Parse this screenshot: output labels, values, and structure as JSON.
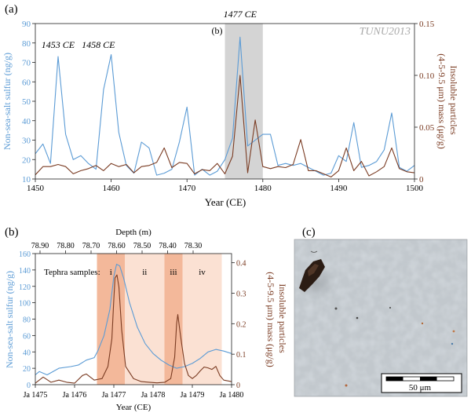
{
  "figure": {
    "panel_a_label": "(a)",
    "panel_b_label": "(b)",
    "panel_c_label": "(c)",
    "colors": {
      "sulfur": "#5b9bd5",
      "particles": "#7a3b22",
      "highlight": "#d4d4d4",
      "tephra_dark": "#f3b89a",
      "tephra_light": "#fbe1d3"
    }
  },
  "chart_data": [
    {
      "type": "line",
      "panel": "a",
      "record_label": "TUNU2013",
      "xlabel": "Year (CE)",
      "ylabel_left": "Non-sea-salt sulfur (ng/g)",
      "ylabel_right": "Insoluble particles (4-5-9.5 μm) mass (μg/g)",
      "xlim": [
        1450,
        1500
      ],
      "ylim_left": [
        10,
        90
      ],
      "ylim_right": [
        0,
        0.15
      ],
      "xticks": [
        "1450",
        "1460",
        "1470",
        "1480",
        "1490",
        "1500"
      ],
      "yticks_left": [
        "10",
        "20",
        "30",
        "40",
        "50",
        "60",
        "70",
        "80",
        "90"
      ],
      "yticks_right": [
        "0",
        "0.05",
        "0.10",
        "0.15"
      ],
      "highlight": {
        "x": [
          1475,
          1480
        ],
        "label": "(b)"
      },
      "annotations": [
        {
          "text": "1453 CE",
          "x": 1453
        },
        {
          "text": "1458 CE",
          "x": 1458
        },
        {
          "text": "1477 CE",
          "x": 1477
        }
      ],
      "series": [
        {
          "axis": "left",
          "x": [
            1450,
            1451,
            1452,
            1453,
            1454,
            1455,
            1456,
            1457,
            1458,
            1459,
            1460,
            1461,
            1462,
            1463,
            1464,
            1465,
            1466,
            1467,
            1468,
            1469,
            1470,
            1471,
            1472,
            1473,
            1474,
            1475,
            1476,
            1477,
            1478,
            1479,
            1480,
            1481,
            1482,
            1483,
            1484,
            1485,
            1486,
            1487,
            1488,
            1489,
            1490,
            1491,
            1492,
            1493,
            1494,
            1495,
            1496,
            1497,
            1498,
            1499,
            1500
          ],
          "y": [
            23,
            28,
            18,
            73,
            33,
            20,
            22,
            18,
            15,
            56,
            74,
            34,
            17,
            13,
            29,
            26,
            12,
            13,
            15,
            29,
            47,
            12,
            15,
            12,
            14,
            20,
            31,
            83,
            27,
            30,
            33,
            33,
            17,
            18,
            17,
            18,
            16,
            14,
            12,
            13,
            22,
            19,
            39,
            16,
            17,
            19,
            25,
            44,
            16,
            14,
            17
          ]
        },
        {
          "axis": "right",
          "x": [
            1450,
            1451,
            1452,
            1453,
            1454,
            1455,
            1456,
            1457,
            1458,
            1459,
            1460,
            1461,
            1462,
            1463,
            1464,
            1465,
            1466,
            1467,
            1468,
            1469,
            1470,
            1471,
            1472,
            1473,
            1474,
            1475,
            1476,
            1477,
            1478,
            1479,
            1480,
            1481,
            1482,
            1483,
            1484,
            1485,
            1486,
            1487,
            1488,
            1489,
            1490,
            1491,
            1492,
            1493,
            1494,
            1495,
            1496,
            1497,
            1498,
            1499,
            1500
          ],
          "y": [
            0.004,
            0.012,
            0.012,
            0.014,
            0.012,
            0.005,
            0.008,
            0.01,
            0.013,
            0.008,
            0.015,
            0.012,
            0.014,
            0.006,
            0.012,
            0.013,
            0.016,
            0.03,
            0.011,
            0.016,
            0.015,
            0.005,
            0.009,
            0.008,
            0.015,
            0.005,
            0.022,
            0.1,
            0.006,
            0.057,
            0.012,
            0.01,
            0.012,
            0.011,
            0.014,
            0.038,
            0.008,
            0.008,
            0.005,
            0.002,
            0.008,
            0.03,
            0.008,
            0.017,
            0.003,
            0.007,
            0.012,
            0.03,
            0.01,
            0.007,
            0.006
          ]
        }
      ]
    },
    {
      "type": "line",
      "panel": "b",
      "xlabel": "Year (CE)",
      "top_xlabel": "Depth (m)",
      "ylabel_left": "Non-sea-salt sulfur (ng/g)",
      "ylabel_right": "Insoluble particles (4-5-9.5 μm) mass (μg/g)",
      "xlim": [
        1475,
        1480
      ],
      "ylim_left": [
        0,
        160
      ],
      "ylim_right": [
        0,
        0.43
      ],
      "xticks": [
        {
          "label": "Ja 1475",
          "x": 1475
        },
        {
          "label": "Ja 1476",
          "x": 1476
        },
        {
          "label": "Ja 1477",
          "x": 1477
        },
        {
          "label": "Ja 1478",
          "x": 1478
        },
        {
          "label": "Ja 1479",
          "x": 1479
        },
        {
          "label": "Ja 1480",
          "x": 1480
        }
      ],
      "top_ticks": [
        {
          "label": "78.90",
          "x": 1475.12
        },
        {
          "label": "78.80",
          "x": 1475.77
        },
        {
          "label": "78.70",
          "x": 1476.42
        },
        {
          "label": "78.60",
          "x": 1477.07
        },
        {
          "label": "78.50",
          "x": 1477.72
        },
        {
          "label": "78.40",
          "x": 1478.37
        },
        {
          "label": "78.30",
          "x": 1479.02
        }
      ],
      "yticks_left": [
        "0",
        "20",
        "40",
        "60",
        "80",
        "100",
        "120",
        "140",
        "160"
      ],
      "yticks_right": [
        "0",
        "0.1",
        "0.2",
        "0.3",
        "0.4"
      ],
      "tephra_label": "Tephra samples:",
      "tephra_regions": [
        {
          "label": "i",
          "x": [
            1476.57,
            1477.28
          ],
          "shade": "dark"
        },
        {
          "label": "ii",
          "x": [
            1477.28,
            1478.29
          ],
          "shade": "light"
        },
        {
          "label": "iii",
          "x": [
            1478.29,
            1478.75
          ],
          "shade": "dark"
        },
        {
          "label": "iv",
          "x": [
            1478.75,
            1479.75
          ],
          "shade": "light"
        }
      ],
      "series": [
        {
          "axis": "left",
          "x": [
            1475.0,
            1475.1,
            1475.3,
            1475.6,
            1475.9,
            1476.1,
            1476.3,
            1476.5,
            1476.6,
            1476.75,
            1476.9,
            1477.0,
            1477.07,
            1477.15,
            1477.25,
            1477.4,
            1477.6,
            1477.8,
            1478.0,
            1478.2,
            1478.4,
            1478.6,
            1478.8,
            1479.0,
            1479.2,
            1479.4,
            1479.6,
            1479.8,
            1480.0
          ],
          "y": [
            12,
            16,
            12,
            20,
            22,
            24,
            30,
            33,
            42,
            60,
            92,
            132,
            147,
            145,
            130,
            100,
            70,
            50,
            38,
            30,
            24,
            20,
            22,
            26,
            32,
            40,
            43,
            41,
            38
          ]
        },
        {
          "axis": "right",
          "x": [
            1475.0,
            1475.2,
            1475.4,
            1475.6,
            1475.8,
            1476.0,
            1476.2,
            1476.3,
            1476.5,
            1476.7,
            1476.85,
            1476.95,
            1477.0,
            1477.03,
            1477.08,
            1477.13,
            1477.2,
            1477.3,
            1477.5,
            1477.7,
            1477.9,
            1478.1,
            1478.3,
            1478.45,
            1478.55,
            1478.6,
            1478.63,
            1478.7,
            1478.8,
            1478.9,
            1479.0,
            1479.1,
            1479.2,
            1479.3,
            1479.4,
            1479.5,
            1479.6,
            1479.7,
            1479.8,
            1480.0
          ],
          "y": [
            0.005,
            0.025,
            0.008,
            0.015,
            0.008,
            0.005,
            0.03,
            0.035,
            0.015,
            0.02,
            0.06,
            0.15,
            0.28,
            0.35,
            0.36,
            0.32,
            0.18,
            0.06,
            0.02,
            0.01,
            0.008,
            0.006,
            0.008,
            0.02,
            0.09,
            0.2,
            0.23,
            0.16,
            0.07,
            0.03,
            0.02,
            0.03,
            0.045,
            0.058,
            0.055,
            0.05,
            0.06,
            0.03,
            0.015,
            0.01
          ]
        }
      ]
    }
  ],
  "micrograph": {
    "scale_bar_label": "50 μm"
  }
}
